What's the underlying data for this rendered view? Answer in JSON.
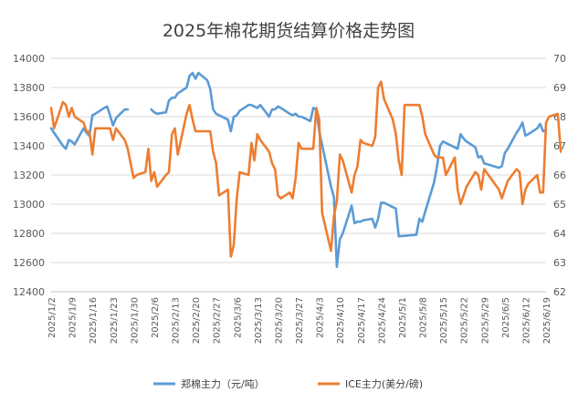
{
  "chart_data": {
    "type": "line",
    "title": "2025年棉花期货结算价格走势图",
    "y_left": {
      "min": 12400,
      "max": 14000,
      "step": 200
    },
    "y_right": {
      "min": 62,
      "max": 70,
      "step": 1
    },
    "x_range": [
      "2025-01-02",
      "2025-06-19"
    ],
    "x_ticks": [
      "2025/1/2",
      "2025/1/9",
      "2025/1/16",
      "2025/1/23",
      "2025/1/30",
      "2025/2/6",
      "2025/2/13",
      "2025/2/20",
      "2025/2/27",
      "2025/3/6",
      "2025/3/13",
      "2025/3/20",
      "2025/3/27",
      "2025/4/3",
      "2025/4/10",
      "2025/4/17",
      "2025/4/24",
      "2025/5/1",
      "2025/5/8",
      "2025/5/15",
      "2025/5/22",
      "2025/5/29",
      "2025/6/5",
      "2025/6/12",
      "2025/6/19"
    ],
    "legend_position": "bottom",
    "grid": "horizontal",
    "series": [
      {
        "name": "郑棉主力（元/吨）",
        "axis": "left",
        "color": "#5b9bd5",
        "points": [
          [
            "2025-01-02",
            13520
          ],
          [
            "2025-01-03",
            13490
          ],
          [
            "2025-01-06",
            13400
          ],
          [
            "2025-01-07",
            13380
          ],
          [
            "2025-01-08",
            13440
          ],
          [
            "2025-01-09",
            13430
          ],
          [
            "2025-01-10",
            13410
          ],
          [
            "2025-01-13",
            13520
          ],
          [
            "2025-01-14",
            13490
          ],
          [
            "2025-01-15",
            13470
          ],
          [
            "2025-01-16",
            13610
          ],
          [
            "2025-01-17",
            13620
          ],
          [
            "2025-01-20",
            13660
          ],
          [
            "2025-01-21",
            13670
          ],
          [
            "2025-01-22",
            13610
          ],
          [
            "2025-01-23",
            13540
          ],
          [
            "2025-01-24",
            13590
          ],
          [
            "2025-01-27",
            13650
          ],
          [
            "2025-01-28",
            13650
          ],
          [
            "2025-02-05",
            13650
          ],
          [
            "2025-02-06",
            13630
          ],
          [
            "2025-02-07",
            13620
          ],
          [
            "2025-02-10",
            13630
          ],
          [
            "2025-02-11",
            13710
          ],
          [
            "2025-02-12",
            13730
          ],
          [
            "2025-02-13",
            13730
          ],
          [
            "2025-02-14",
            13760
          ],
          [
            "2025-02-17",
            13800
          ],
          [
            "2025-02-18",
            13880
          ],
          [
            "2025-02-19",
            13900
          ],
          [
            "2025-02-20",
            13860
          ],
          [
            "2025-02-21",
            13900
          ],
          [
            "2025-02-24",
            13850
          ],
          [
            "2025-02-25",
            13790
          ],
          [
            "2025-02-26",
            13650
          ],
          [
            "2025-02-27",
            13620
          ],
          [
            "2025-02-28",
            13610
          ],
          [
            "2025-03-03",
            13580
          ],
          [
            "2025-03-04",
            13500
          ],
          [
            "2025-03-05",
            13600
          ],
          [
            "2025-03-06",
            13610
          ],
          [
            "2025-03-07",
            13640
          ],
          [
            "2025-03-10",
            13680
          ],
          [
            "2025-03-11",
            13680
          ],
          [
            "2025-03-12",
            13670
          ],
          [
            "2025-03-13",
            13660
          ],
          [
            "2025-03-14",
            13680
          ],
          [
            "2025-03-17",
            13600
          ],
          [
            "2025-03-18",
            13650
          ],
          [
            "2025-03-19",
            13650
          ],
          [
            "2025-03-20",
            13670
          ],
          [
            "2025-03-21",
            13660
          ],
          [
            "2025-03-24",
            13620
          ],
          [
            "2025-03-25",
            13610
          ],
          [
            "2025-03-26",
            13620
          ],
          [
            "2025-03-27",
            13600
          ],
          [
            "2025-03-28",
            13600
          ],
          [
            "2025-03-31",
            13570
          ],
          [
            "2025-04-01",
            13660
          ],
          [
            "2025-04-02",
            13650
          ],
          [
            "2025-04-03",
            13500
          ],
          [
            "2025-04-07",
            13120
          ],
          [
            "2025-04-08",
            13050
          ],
          [
            "2025-04-09",
            12570
          ],
          [
            "2025-04-10",
            12760
          ],
          [
            "2025-04-11",
            12800
          ],
          [
            "2025-04-14",
            12990
          ],
          [
            "2025-04-15",
            12870
          ],
          [
            "2025-04-16",
            12880
          ],
          [
            "2025-04-17",
            12880
          ],
          [
            "2025-04-18",
            12890
          ],
          [
            "2025-04-21",
            12900
          ],
          [
            "2025-04-22",
            12840
          ],
          [
            "2025-04-23",
            12900
          ],
          [
            "2025-04-24",
            13010
          ],
          [
            "2025-04-25",
            13010
          ],
          [
            "2025-04-28",
            12980
          ],
          [
            "2025-04-29",
            12970
          ],
          [
            "2025-04-30",
            12780
          ],
          [
            "2025-05-06",
            12790
          ],
          [
            "2025-05-07",
            12900
          ],
          [
            "2025-05-08",
            12880
          ],
          [
            "2025-05-09",
            12950
          ],
          [
            "2025-05-12",
            13150
          ],
          [
            "2025-05-13",
            13260
          ],
          [
            "2025-05-14",
            13400
          ],
          [
            "2025-05-15",
            13430
          ],
          [
            "2025-05-16",
            13420
          ],
          [
            "2025-05-19",
            13390
          ],
          [
            "2025-05-20",
            13380
          ],
          [
            "2025-05-21",
            13480
          ],
          [
            "2025-05-22",
            13450
          ],
          [
            "2025-05-23",
            13430
          ],
          [
            "2025-05-26",
            13390
          ],
          [
            "2025-05-27",
            13320
          ],
          [
            "2025-05-28",
            13330
          ],
          [
            "2025-05-29",
            13280
          ],
          [
            "2025-06-03",
            13250
          ],
          [
            "2025-06-04",
            13260
          ],
          [
            "2025-06-05",
            13350
          ],
          [
            "2025-06-06",
            13380
          ],
          [
            "2025-06-09",
            13490
          ],
          [
            "2025-06-10",
            13520
          ],
          [
            "2025-06-11",
            13560
          ],
          [
            "2025-06-12",
            13470
          ],
          [
            "2025-06-13",
            13480
          ],
          [
            "2025-06-16",
            13520
          ],
          [
            "2025-06-17",
            13550
          ],
          [
            "2025-06-18",
            13500
          ],
          [
            "2025-06-19",
            13510
          ]
        ]
      },
      {
        "name": "ICE主力(美分/磅)",
        "axis": "right",
        "color": "#ed7d31",
        "points": [
          [
            "2025-01-02",
            68.3
          ],
          [
            "2025-01-03",
            67.6
          ],
          [
            "2025-01-06",
            68.5
          ],
          [
            "2025-01-07",
            68.4
          ],
          [
            "2025-01-08",
            68.0
          ],
          [
            "2025-01-09",
            68.3
          ],
          [
            "2025-01-10",
            68.0
          ],
          [
            "2025-01-13",
            67.8
          ],
          [
            "2025-01-14",
            67.5
          ],
          [
            "2025-01-15",
            67.5
          ],
          [
            "2025-01-16",
            66.7
          ],
          [
            "2025-01-17",
            67.6
          ],
          [
            "2025-01-20",
            67.6
          ],
          [
            "2025-01-21",
            67.6
          ],
          [
            "2025-01-22",
            67.6
          ],
          [
            "2025-01-23",
            67.2
          ],
          [
            "2025-01-24",
            67.6
          ],
          [
            "2025-01-27",
            67.2
          ],
          [
            "2025-01-28",
            66.9
          ],
          [
            "2025-01-29",
            66.4
          ],
          [
            "2025-01-30",
            65.9
          ],
          [
            "2025-01-31",
            66.0
          ],
          [
            "2025-02-03",
            66.1
          ],
          [
            "2025-02-04",
            66.9
          ],
          [
            "2025-02-05",
            65.8
          ],
          [
            "2025-02-06",
            66.1
          ],
          [
            "2025-02-07",
            65.6
          ],
          [
            "2025-02-10",
            66.0
          ],
          [
            "2025-02-11",
            66.1
          ],
          [
            "2025-02-12",
            67.4
          ],
          [
            "2025-02-13",
            67.6
          ],
          [
            "2025-02-14",
            66.7
          ],
          [
            "2025-02-17",
            68.1
          ],
          [
            "2025-02-18",
            68.4
          ],
          [
            "2025-02-19",
            67.9
          ],
          [
            "2025-02-20",
            67.5
          ],
          [
            "2025-02-21",
            67.5
          ],
          [
            "2025-02-24",
            67.5
          ],
          [
            "2025-02-25",
            67.5
          ],
          [
            "2025-02-26",
            66.8
          ],
          [
            "2025-02-27",
            66.4
          ],
          [
            "2025-02-28",
            65.3
          ],
          [
            "2025-03-03",
            65.5
          ],
          [
            "2025-03-04",
            63.2
          ],
          [
            "2025-03-05",
            63.6
          ],
          [
            "2025-03-06",
            65.2
          ],
          [
            "2025-03-07",
            66.1
          ],
          [
            "2025-03-10",
            66.0
          ],
          [
            "2025-03-11",
            67.1
          ],
          [
            "2025-03-12",
            66.5
          ],
          [
            "2025-03-13",
            67.4
          ],
          [
            "2025-03-14",
            67.2
          ],
          [
            "2025-03-17",
            66.8
          ],
          [
            "2025-03-18",
            66.4
          ],
          [
            "2025-03-19",
            66.2
          ],
          [
            "2025-03-20",
            65.3
          ],
          [
            "2025-03-21",
            65.2
          ],
          [
            "2025-03-24",
            65.4
          ],
          [
            "2025-03-25",
            65.2
          ],
          [
            "2025-03-26",
            65.9
          ],
          [
            "2025-03-27",
            67.1
          ],
          [
            "2025-03-28",
            66.9
          ],
          [
            "2025-03-31",
            66.9
          ],
          [
            "2025-04-01",
            66.9
          ],
          [
            "2025-04-02",
            68.3
          ],
          [
            "2025-04-03",
            67.9
          ],
          [
            "2025-04-04",
            64.7
          ],
          [
            "2025-04-07",
            63.4
          ],
          [
            "2025-04-08",
            64.6
          ],
          [
            "2025-04-09",
            65.1
          ],
          [
            "2025-04-10",
            66.7
          ],
          [
            "2025-04-11",
            66.5
          ],
          [
            "2025-04-14",
            65.4
          ],
          [
            "2025-04-15",
            66.0
          ],
          [
            "2025-04-16",
            66.3
          ],
          [
            "2025-04-17",
            67.2
          ],
          [
            "2025-04-18",
            67.1
          ],
          [
            "2025-04-21",
            67.0
          ],
          [
            "2025-04-22",
            67.3
          ],
          [
            "2025-04-23",
            69.0
          ],
          [
            "2025-04-24",
            69.2
          ],
          [
            "2025-04-25",
            68.6
          ],
          [
            "2025-04-28",
            67.9
          ],
          [
            "2025-04-29",
            67.4
          ],
          [
            "2025-04-30",
            66.5
          ],
          [
            "2025-05-01",
            66.0
          ],
          [
            "2025-05-02",
            68.4
          ],
          [
            "2025-05-05",
            68.4
          ],
          [
            "2025-05-06",
            68.4
          ],
          [
            "2025-05-07",
            68.4
          ],
          [
            "2025-05-08",
            68.0
          ],
          [
            "2025-05-09",
            67.4
          ],
          [
            "2025-05-12",
            66.7
          ],
          [
            "2025-05-13",
            66.6
          ],
          [
            "2025-05-14",
            66.6
          ],
          [
            "2025-05-15",
            66.6
          ],
          [
            "2025-05-16",
            66.0
          ],
          [
            "2025-05-19",
            66.6
          ],
          [
            "2025-05-20",
            65.5
          ],
          [
            "2025-05-21",
            65.0
          ],
          [
            "2025-05-22",
            65.3
          ],
          [
            "2025-05-23",
            65.6
          ],
          [
            "2025-05-26",
            66.1
          ],
          [
            "2025-05-27",
            66.0
          ],
          [
            "2025-05-28",
            65.5
          ],
          [
            "2025-05-29",
            66.2
          ],
          [
            "2025-06-03",
            65.5
          ],
          [
            "2025-06-04",
            65.2
          ],
          [
            "2025-06-05",
            65.5
          ],
          [
            "2025-06-06",
            65.8
          ],
          [
            "2025-06-09",
            66.2
          ],
          [
            "2025-06-10",
            66.1
          ],
          [
            "2025-06-11",
            65.0
          ],
          [
            "2025-06-12",
            65.5
          ],
          [
            "2025-06-13",
            65.7
          ],
          [
            "2025-06-16",
            66.0
          ],
          [
            "2025-06-17",
            65.4
          ],
          [
            "2025-06-18",
            65.4
          ],
          [
            "2025-06-19",
            67.8
          ],
          [
            "2025-06-20",
            68.0
          ],
          [
            "2025-06-23",
            68.1
          ],
          [
            "2025-06-24",
            66.8
          ]
        ]
      }
    ]
  }
}
